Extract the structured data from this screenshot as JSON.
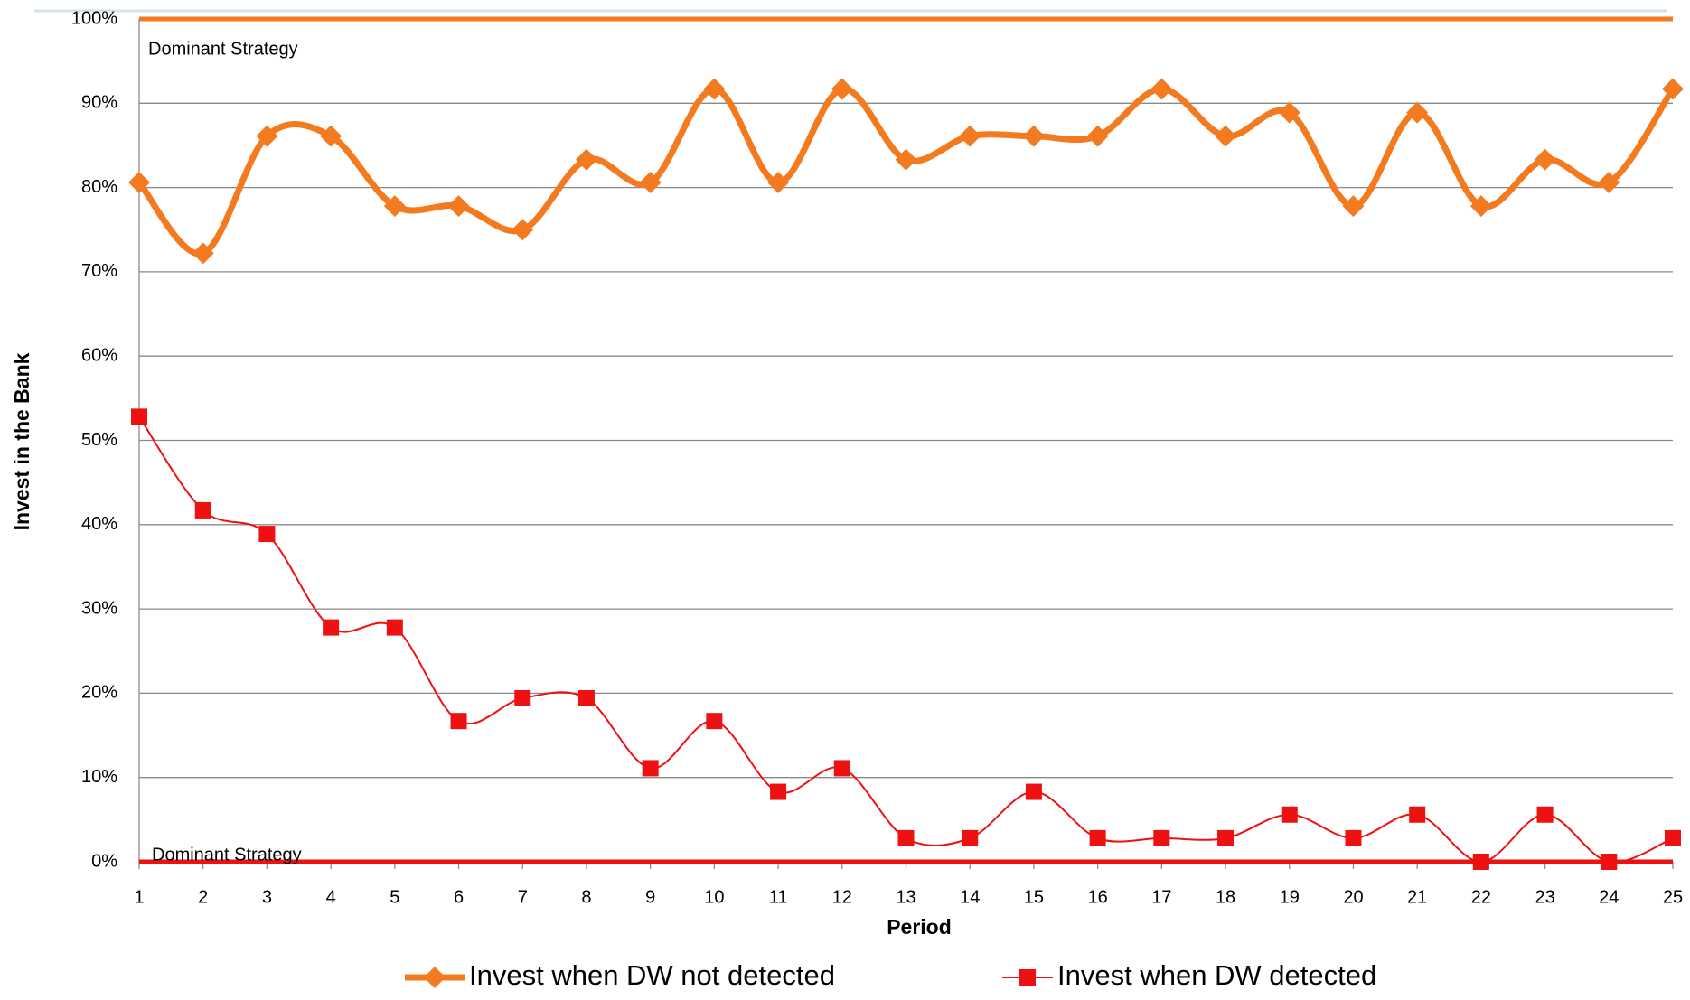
{
  "chart_data": {
    "type": "line",
    "x": [
      1,
      2,
      3,
      4,
      5,
      6,
      7,
      8,
      9,
      10,
      11,
      12,
      13,
      14,
      15,
      16,
      17,
      18,
      19,
      20,
      21,
      22,
      23,
      24,
      25
    ],
    "xlim": [
      1,
      25
    ],
    "xticks": [
      1,
      2,
      3,
      4,
      5,
      6,
      7,
      8,
      9,
      10,
      11,
      12,
      13,
      14,
      15,
      16,
      17,
      18,
      19,
      20,
      21,
      22,
      23,
      24,
      25
    ],
    "xlabel": "Period",
    "ylabel": "Invest in the Bank",
    "ylim": [
      0,
      100
    ],
    "yticks": [
      {
        "value": 0,
        "label": "0%"
      },
      {
        "value": 10,
        "label": "10%"
      },
      {
        "value": 20,
        "label": "20%"
      },
      {
        "value": 30,
        "label": "30%"
      },
      {
        "value": 40,
        "label": "40%"
      },
      {
        "value": 50,
        "label": "50%"
      },
      {
        "value": 60,
        "label": "60%"
      },
      {
        "value": 70,
        "label": "70%"
      },
      {
        "value": 80,
        "label": "80%"
      },
      {
        "value": 90,
        "label": "90%"
      },
      {
        "value": 100,
        "label": "100%"
      }
    ],
    "grid": true,
    "smooth": true,
    "legend": "bottom",
    "series": [
      {
        "name": "Invest when DW not detected",
        "color": "#f47a20",
        "marker": "diamond",
        "values": [
          80.6,
          72.2,
          86.1,
          86.1,
          77.8,
          77.8,
          75,
          83.3,
          80.6,
          91.7,
          80.6,
          91.7,
          83.3,
          86.1,
          86.1,
          86.1,
          91.7,
          86.1,
          88.9,
          77.8,
          88.9,
          77.8,
          83.3,
          80.6,
          91.7
        ]
      },
      {
        "name": "Invest when DW detected",
        "color": "#ee1111",
        "marker": "square",
        "values": [
          52.8,
          41.7,
          38.9,
          27.8,
          27.8,
          16.7,
          19.4,
          19.4,
          11.1,
          16.7,
          8.3,
          11.1,
          2.8,
          2.8,
          8.3,
          2.8,
          2.8,
          2.8,
          5.6,
          2.8,
          5.6,
          0,
          5.6,
          0,
          2.8
        ]
      }
    ],
    "reference_lines": [
      {
        "value": 100,
        "label": "Dominant Strategy",
        "color": "#f47a20"
      },
      {
        "value": 0,
        "label": "Dominant Strategy",
        "color": "#ee1111"
      }
    ]
  }
}
